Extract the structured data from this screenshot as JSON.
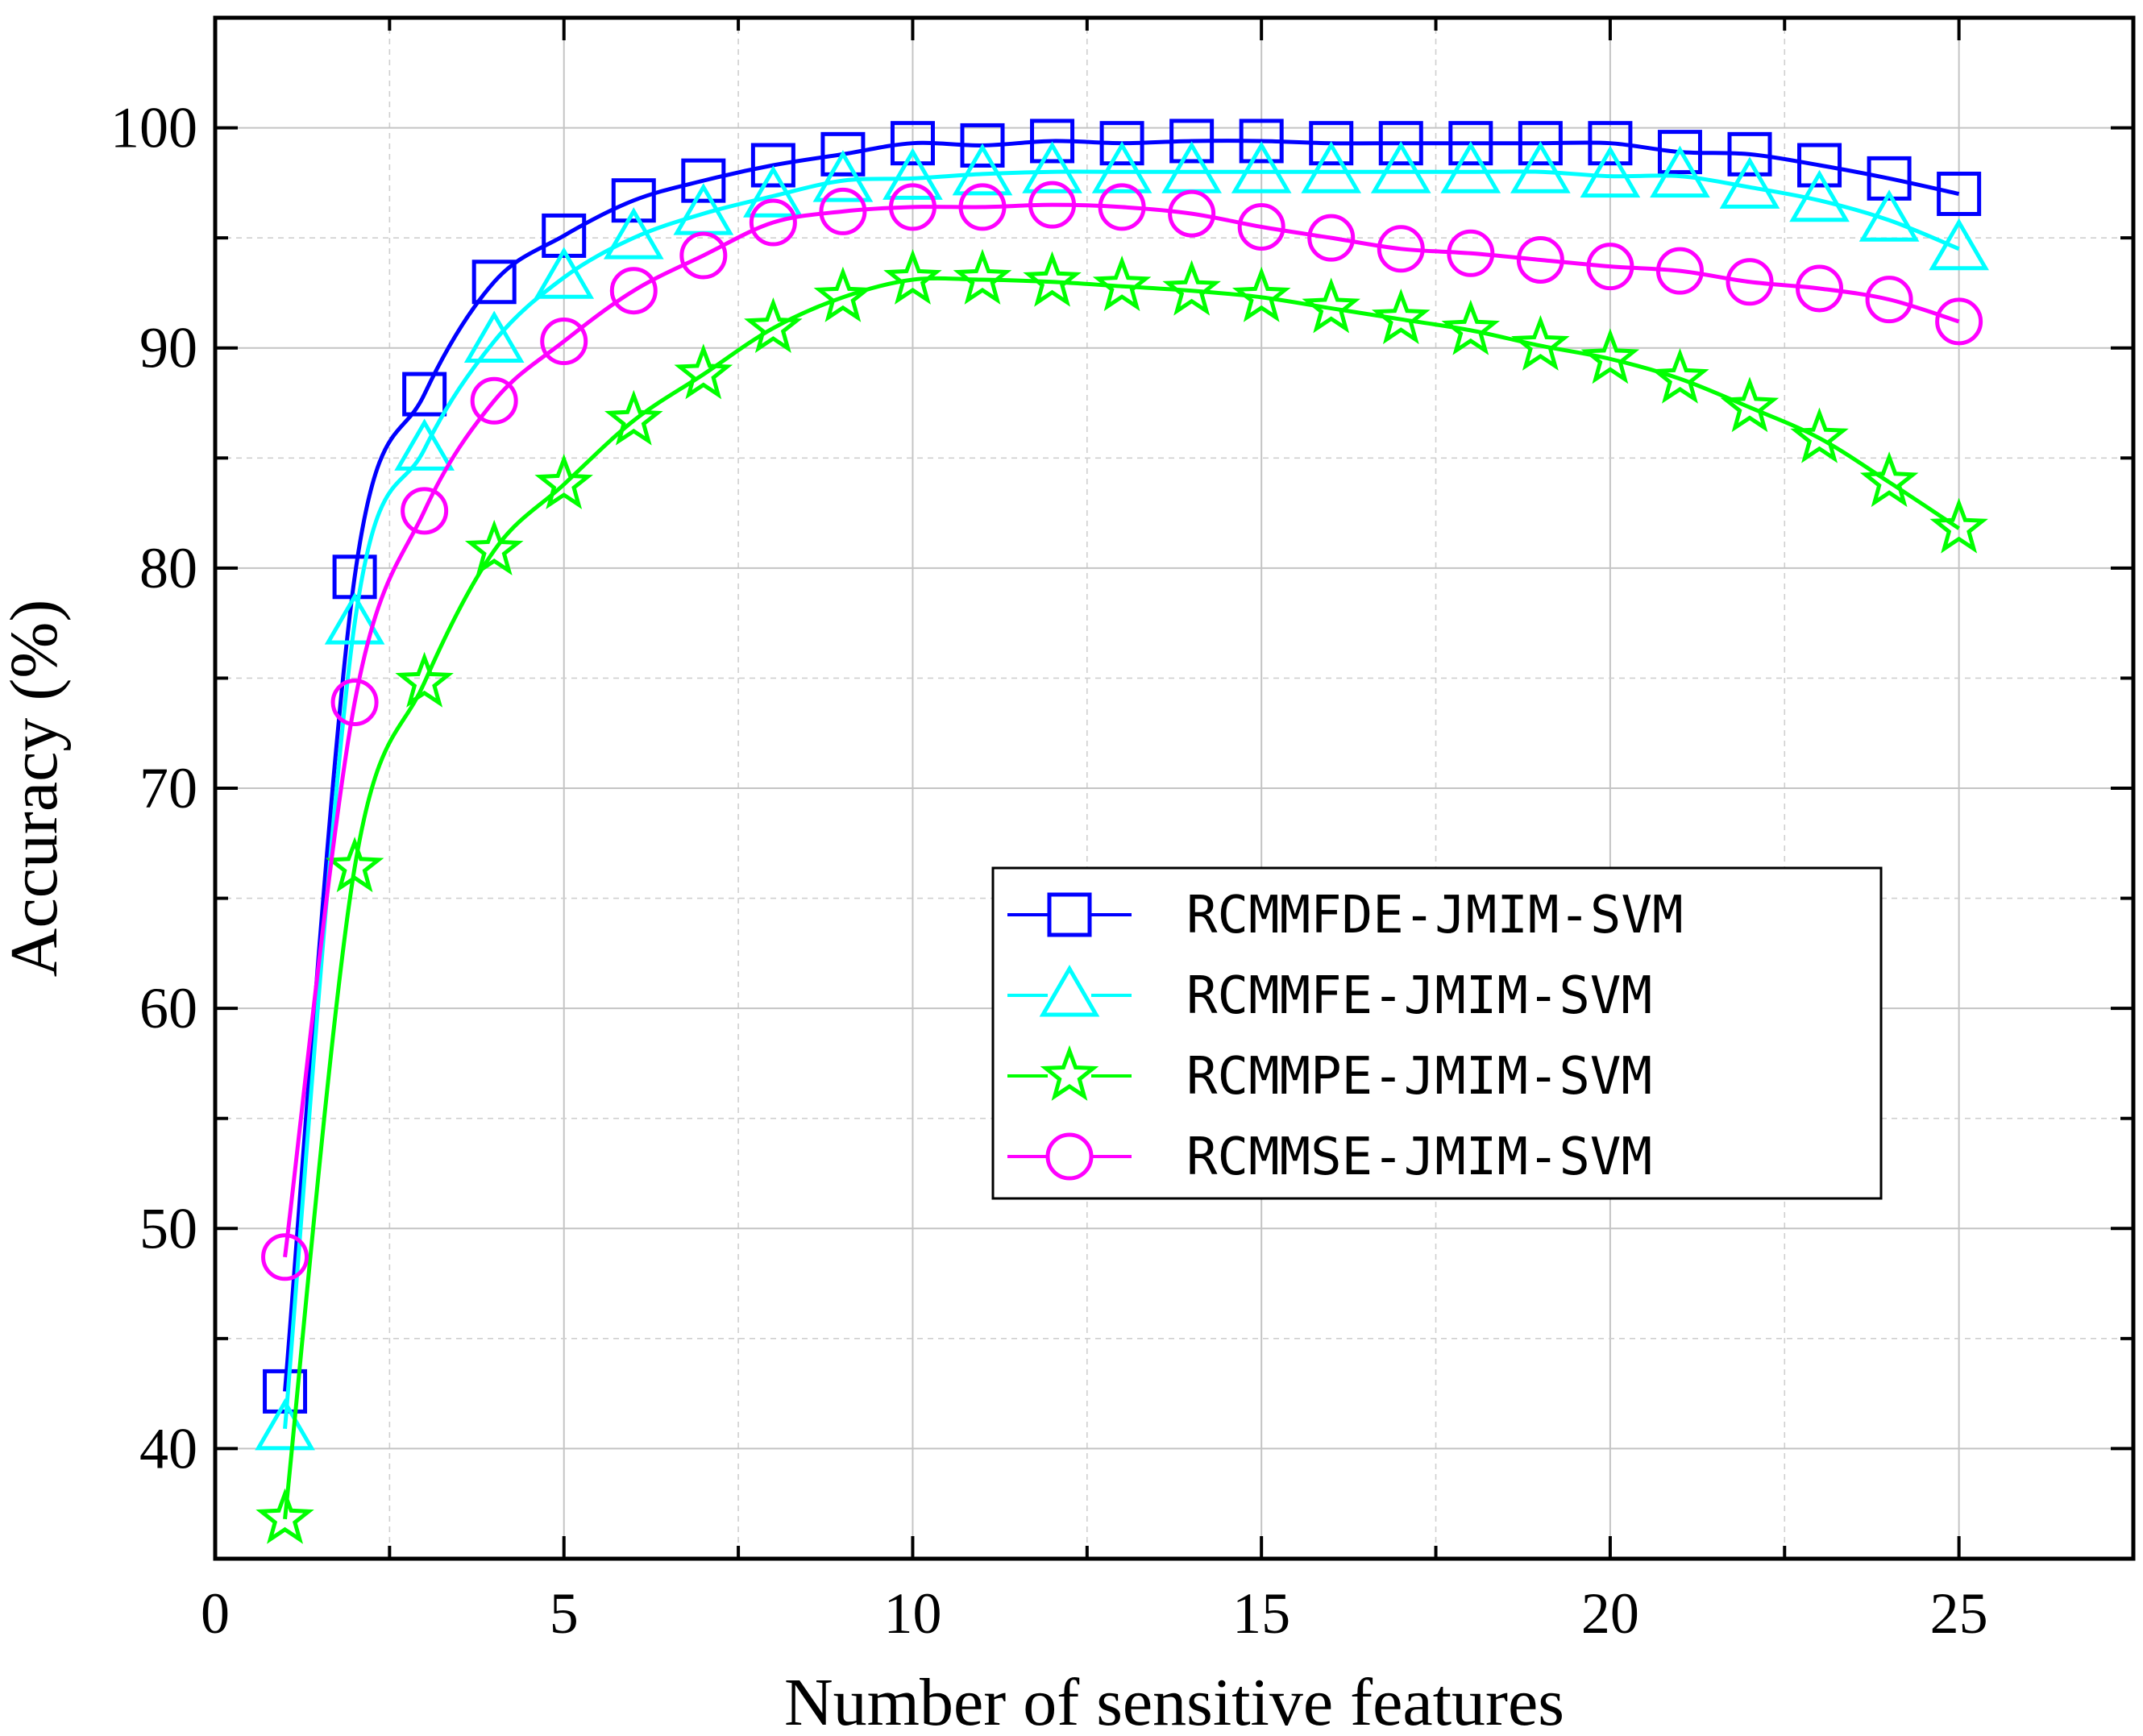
{
  "chart_data": {
    "type": "line",
    "title": "",
    "xlabel": "Number of sensitive features",
    "ylabel": "Accuracy (%)",
    "xlim": [
      0,
      27.5
    ],
    "ylim": [
      35,
      105
    ],
    "xticks": [
      0,
      5,
      10,
      15,
      20,
      25
    ],
    "yticks": [
      40,
      50,
      60,
      70,
      80,
      90,
      100
    ],
    "x_tick_labels": [
      "0",
      "5",
      "10",
      "15",
      "20",
      "25"
    ],
    "y_tick_labels": [
      "40",
      "50",
      "60",
      "70",
      "80",
      "90",
      "100"
    ],
    "grid": true,
    "legend_position": "center-right",
    "x": [
      1,
      2,
      3,
      4,
      5,
      6,
      7,
      8,
      9,
      10,
      11,
      12,
      13,
      14,
      15,
      16,
      17,
      18,
      19,
      20,
      21,
      22,
      23,
      24,
      25
    ],
    "series": [
      {
        "name": "RCMMFDE-JMIM-SVM",
        "color": "#0000ff",
        "marker": "square",
        "values": [
          42.6,
          79.6,
          87.9,
          93.0,
          95.1,
          96.7,
          97.6,
          98.3,
          98.8,
          99.3,
          99.2,
          99.4,
          99.3,
          99.4,
          99.4,
          99.3,
          99.3,
          99.3,
          99.3,
          99.3,
          98.9,
          98.8,
          98.3,
          97.7,
          97.0
        ]
      },
      {
        "name": "RCMMFE-JMIM-SVM",
        "color": "#00ffff",
        "marker": "triangle",
        "values": [
          40.9,
          77.5,
          85.4,
          90.3,
          93.2,
          95.0,
          96.1,
          96.9,
          97.6,
          97.7,
          97.9,
          98.0,
          98.0,
          98.0,
          98.0,
          98.0,
          98.0,
          98.0,
          98.0,
          97.8,
          97.8,
          97.3,
          96.7,
          95.8,
          94.5
        ]
      },
      {
        "name": "RCMMPE-JMIM-SVM",
        "color": "#00ff00",
        "marker": "star",
        "values": [
          36.8,
          66.4,
          74.8,
          80.8,
          83.8,
          86.7,
          88.8,
          90.9,
          92.3,
          93.1,
          93.1,
          93.0,
          92.8,
          92.6,
          92.3,
          91.8,
          91.3,
          90.8,
          90.1,
          89.5,
          88.6,
          87.3,
          85.9,
          83.9,
          81.8
        ]
      },
      {
        "name": "RCMMSE-JMIM-SVM",
        "color": "#ff00ff",
        "marker": "circle",
        "values": [
          48.7,
          73.9,
          82.6,
          87.6,
          90.3,
          92.6,
          94.2,
          95.7,
          96.2,
          96.4,
          96.4,
          96.5,
          96.4,
          96.1,
          95.5,
          95.0,
          94.5,
          94.3,
          94.0,
          93.7,
          93.5,
          93.0,
          92.7,
          92.2,
          91.2
        ]
      }
    ]
  }
}
